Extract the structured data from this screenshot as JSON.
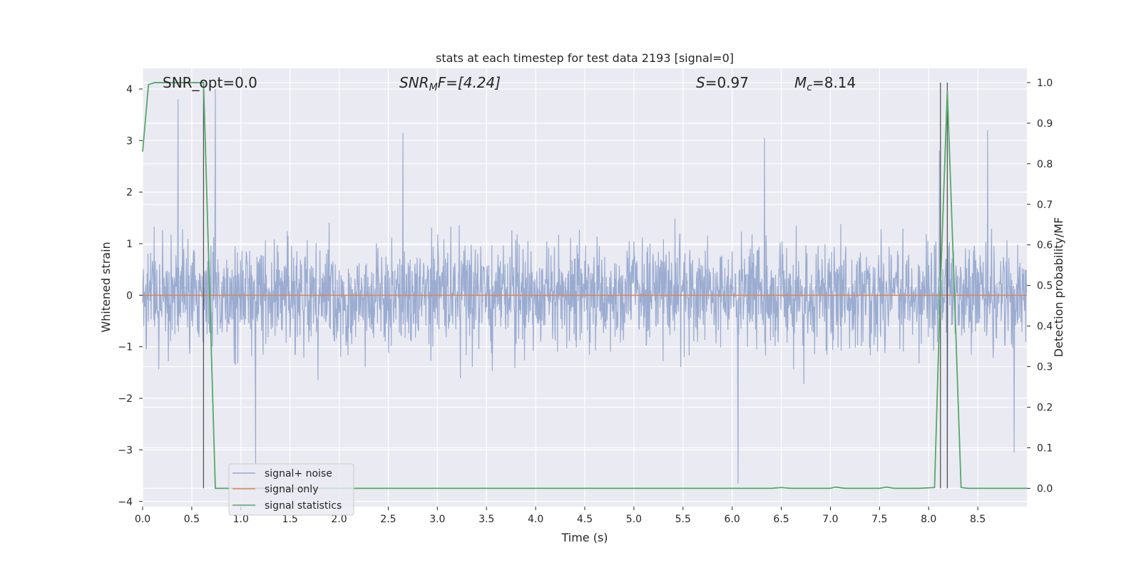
{
  "chart_data": {
    "type": "line",
    "title": "stats at each timestep for test data 2193 [signal=0]",
    "xlabel": "Time (s)",
    "ylabel": "Whitened strain",
    "y2label": "Detection probability/MF",
    "xlim": [
      0.0,
      9.0
    ],
    "ylim": [
      -4.1,
      4.4
    ],
    "y2lim": [
      -0.045,
      1.035
    ],
    "xticks": [
      "0.0",
      "0.5",
      "1.0",
      "1.5",
      "2.0",
      "2.5",
      "3.0",
      "3.5",
      "4.0",
      "4.5",
      "5.0",
      "5.5",
      "6.0",
      "6.5",
      "7.0",
      "7.5",
      "8.0",
      "8.5"
    ],
    "yticks": [
      "4",
      "3",
      "2",
      "1",
      "0",
      "−1",
      "−2",
      "−3",
      "−4"
    ],
    "y2ticks": [
      "1.0",
      "0.9",
      "0.8",
      "0.7",
      "0.6",
      "0.5",
      "0.4",
      "0.3",
      "0.2",
      "0.1",
      "0.0"
    ],
    "grid": true,
    "legend_position": "lower-left",
    "annotations": {
      "snr_opt": "SNR_opt=0.0",
      "snr_mf_main": "SNR",
      "snr_mf_sub": "M",
      "snr_mf_rest": "F=[4.24]",
      "s_main": "S",
      "s_rest": "=0.97",
      "mc_main": "M",
      "mc_sub": "c",
      "mc_rest": "=8.14"
    },
    "vertical_lines_x": [
      0.62,
      8.12,
      8.19
    ],
    "series": [
      {
        "name": "signal+ noise",
        "color": "#97a9cf",
        "kind": "noise",
        "sample_rate_hz": 512,
        "amplitude_envelope": [
          1.4,
          3.8
        ],
        "peak_values": [
          {
            "x": 0.36,
            "y": 3.8
          },
          {
            "x": 0.74,
            "y": 4.0
          },
          {
            "x": 1.15,
            "y": -3.3
          },
          {
            "x": 2.65,
            "y": 3.15
          },
          {
            "x": 6.06,
            "y": -3.65
          },
          {
            "x": 6.33,
            "y": 3.05
          },
          {
            "x": 8.11,
            "y": 2.8
          },
          {
            "x": 8.19,
            "y": -3.4
          },
          {
            "x": 8.6,
            "y": 3.2
          },
          {
            "x": 8.87,
            "y": -3.05
          }
        ]
      },
      {
        "name": "signal only",
        "color": "#dd8452",
        "kind": "constant",
        "value": 0.0
      },
      {
        "name": "signal statistics",
        "color": "#55a868",
        "axis": "right",
        "x": [
          0.0,
          0.06,
          0.12,
          0.2,
          0.3,
          0.4,
          0.5,
          0.6,
          0.62,
          0.74,
          0.8,
          1.0,
          2.0,
          3.0,
          4.0,
          5.0,
          6.0,
          6.4,
          6.5,
          6.6,
          6.9,
          7.0,
          7.05,
          7.15,
          7.3,
          7.5,
          7.57,
          7.65,
          7.9,
          8.06,
          8.12,
          8.19,
          8.26,
          8.33,
          8.4,
          8.6,
          9.0
        ],
        "values": [
          0.83,
          0.995,
          1.0,
          1.0,
          1.0,
          1.0,
          1.0,
          1.0,
          1.0,
          0.0,
          0.0,
          0.0,
          0.0,
          0.0,
          0.0,
          0.0,
          0.0,
          0.0,
          0.002,
          0.0,
          0.0,
          0.0,
          0.003,
          0.0,
          0.0,
          0.0,
          0.003,
          0.0,
          0.0,
          0.002,
          0.5,
          0.98,
          0.5,
          0.002,
          0.0,
          0.0,
          0.0
        ]
      }
    ]
  }
}
